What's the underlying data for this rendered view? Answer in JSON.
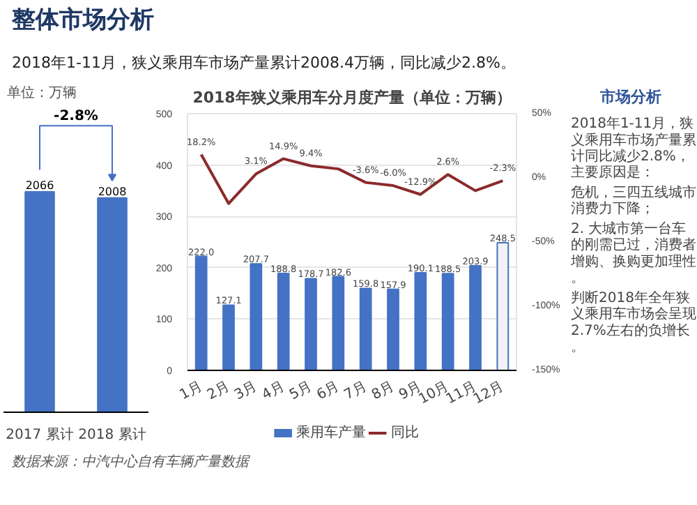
{
  "chart_data": [
    {
      "type": "other",
      "title": "整体市场分析",
      "subtitle": "2018年1-11月，狭义乘用车市场产量累计2008.4万辆，同比减少2.8%。"
    },
    {
      "type": "bar",
      "categories": [
        "2017 累计",
        "2018 累计"
      ],
      "values": [
        2066,
        2008
      ],
      "color": "#4472c4",
      "data_labels": true,
      "annotations": [
        "单位：万辆",
        "-2.8%"
      ]
    },
    {
      "type": "bar",
      "title": "2018年狭义乘用车分月度产量（单位：万辆）",
      "categories": [
        "1月",
        "2月",
        "3月",
        "4月",
        "5月",
        "6月",
        "7月",
        "8月",
        "9月",
        "10月",
        "11月",
        "12月"
      ],
      "ylim": [
        0,
        500
      ],
      "yticks": [
        0,
        100,
        200,
        300,
        400,
        500
      ],
      "y2lim": [
        -150,
        50
      ],
      "y2ticks": [
        {
          "value": -150,
          "label": "-150%"
        },
        {
          "value": -100,
          "label": "-100%"
        },
        {
          "value": -50,
          "label": "-50%"
        },
        {
          "value": 0,
          "label": "0%"
        },
        {
          "value": 50,
          "label": "50%"
        }
      ],
      "grid": "y",
      "legend": "bottom",
      "series": [
        {
          "name": "乘用车产量",
          "type": "bar",
          "color": "#4472c4",
          "colors": [
            "#4472c4",
            "#4472c4",
            "#4472c4",
            "#4472c4",
            "#4472c4",
            "#4472c4",
            "#4472c4",
            "#4472c4",
            "#4472c4",
            "#4472c4",
            "#4472c4",
            "#f2f2f2"
          ],
          "values": [
            222.0,
            127.1,
            207.7,
            188.8,
            178.7,
            182.6,
            159.8,
            157.9,
            190.1,
            188.5,
            203.9,
            248.5
          ],
          "value_labels": [
            "222.0",
            "127.1",
            "207.7",
            "188.8",
            "178.7",
            "182.6",
            "159.8",
            "157.9",
            "190.1",
            "188.5",
            "203.9",
            "248.5"
          ]
        },
        {
          "name": "同比",
          "type": "line",
          "axis": "y2",
          "color": "#8b2a2a",
          "values": [
            18.2,
            -20,
            3.1,
            14.9,
            9.4,
            7,
            -3.6,
            -6.0,
            -12.9,
            2.6,
            -10,
            -2.3
          ],
          "value_labels": [
            "18.2%",
            null,
            "3.1%",
            "14.9%",
            "9.4%",
            null,
            "-3.6%",
            "-6.0%",
            "-12.9%",
            "2.6%",
            null,
            "-2.3%"
          ]
        }
      ]
    },
    {
      "type": "other",
      "title": "市场分析",
      "annotations": [
        "2018年1-11月，狭义乘用车市场产量累计同比减少2.8%，主要原因是：",
        "危机，三四五线城市消费力下降；",
        "2. 大城市第一台车的刚需已过，消费者增购、换购更加理性。",
        "判断2018年全年狭义乘用车市场会呈现2.7%左右的负增长。"
      ]
    },
    {
      "type": "other",
      "annotations": [
        "数据来源：中汽中心自有车辆产量数据"
      ]
    }
  ]
}
